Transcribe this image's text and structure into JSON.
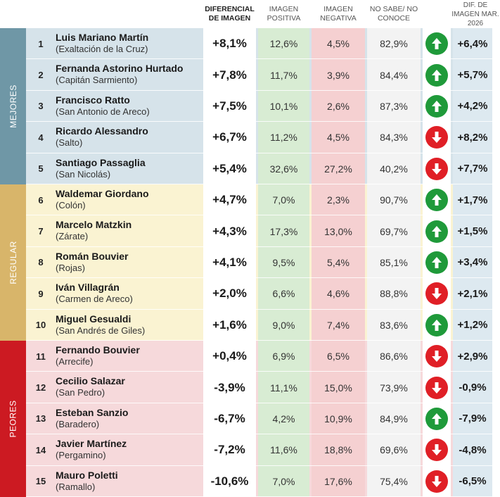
{
  "headers": {
    "diferencial": "DIFERENCIAL DE IMAGEN",
    "positiva": "IMAGEN POSITIVA",
    "negativa": "IMAGEN NEGATIVA",
    "nosabe": "NO SABE/ NO CONOCE",
    "dif": "DIF. DE IMAGEN MAR. 2026"
  },
  "groups": [
    {
      "label": "MEJORES",
      "color": "#6f97a6"
    },
    {
      "label": "REGULAR",
      "color": "#d8b56a"
    },
    {
      "label": "PEORES",
      "color": "#cc1a22"
    }
  ],
  "chart_data": {
    "type": "table",
    "columns": [
      "DIFERENCIAL DE IMAGEN",
      "IMAGEN POSITIVA",
      "IMAGEN NEGATIVA",
      "NO SABE/ NO CONOCE",
      "DIF. DE IMAGEN MAR. 2026"
    ],
    "rows": [
      {
        "rank": "1",
        "name": "Luis Mariano Martín",
        "location": "(Exaltación de la Cruz)",
        "diferencial": "+8,1%",
        "positiva": "12,6%",
        "negativa": "4,5%",
        "nosabe": "82,9%",
        "trend": "up",
        "dif": "+6,4%",
        "group": 0
      },
      {
        "rank": "2",
        "name": "Fernanda Astorino Hurtado",
        "location": "(Capitán Sarmiento)",
        "diferencial": "+7,8%",
        "positiva": "11,7%",
        "negativa": "3,9%",
        "nosabe": "84,4%",
        "trend": "up",
        "dif": "+5,7%",
        "group": 0
      },
      {
        "rank": "3",
        "name": "Francisco Ratto",
        "location": "(San Antonio de Areco)",
        "diferencial": "+7,5%",
        "positiva": "10,1%",
        "negativa": "2,6%",
        "nosabe": "87,3%",
        "trend": "up",
        "dif": "+4,2%",
        "group": 0
      },
      {
        "rank": "4",
        "name": "Ricardo Alessandro",
        "location": "(Salto)",
        "diferencial": "+6,7%",
        "positiva": "11,2%",
        "negativa": "4,5%",
        "nosabe": "84,3%",
        "trend": "down",
        "dif": "+8,2%",
        "group": 0
      },
      {
        "rank": "5",
        "name": "Santiago Passaglia",
        "location": "(San Nicolás)",
        "diferencial": "+5,4%",
        "positiva": "32,6%",
        "negativa": "27,2%",
        "nosabe": "40,2%",
        "trend": "down",
        "dif": "+7,7%",
        "group": 0
      },
      {
        "rank": "6",
        "name": "Waldemar Giordano",
        "location": "(Colón)",
        "diferencial": "+4,7%",
        "positiva": "7,0%",
        "negativa": "2,3%",
        "nosabe": "90,7%",
        "trend": "up",
        "dif": "+1,7%",
        "group": 1
      },
      {
        "rank": "7",
        "name": "Marcelo Matzkin",
        "location": "(Zárate)",
        "diferencial": "+4,3%",
        "positiva": "17,3%",
        "negativa": "13,0%",
        "nosabe": "69,7%",
        "trend": "up",
        "dif": "+1,5%",
        "group": 1
      },
      {
        "rank": "8",
        "name": "Román Bouvier",
        "location": "(Rojas)",
        "diferencial": "+4,1%",
        "positiva": "9,5%",
        "negativa": "5,4%",
        "nosabe": "85,1%",
        "trend": "up",
        "dif": "+3,4%",
        "group": 1
      },
      {
        "rank": "9",
        "name": "Iván Villagrán",
        "location": "(Carmen de Areco)",
        "diferencial": "+2,0%",
        "positiva": "6,6%",
        "negativa": "4,6%",
        "nosabe": "88,8%",
        "trend": "down",
        "dif": "+2,1%",
        "group": 1
      },
      {
        "rank": "10",
        "name": "Miguel Gesualdi",
        "location": "(San Andrés de Giles)",
        "diferencial": "+1,6%",
        "positiva": "9,0%",
        "negativa": "7,4%",
        "nosabe": "83,6%",
        "trend": "up",
        "dif": "+1,2%",
        "group": 1
      },
      {
        "rank": "11",
        "name": "Fernando Bouvier",
        "location": "(Arrecife)",
        "diferencial": "+0,4%",
        "positiva": "6,9%",
        "negativa": "6,5%",
        "nosabe": "86,6%",
        "trend": "down",
        "dif": "+2,9%",
        "group": 2
      },
      {
        "rank": "12",
        "name": "Cecilio Salazar",
        "location": "(San Pedro)",
        "diferencial": "-3,9%",
        "positiva": "11,1%",
        "negativa": "15,0%",
        "nosabe": "73,9%",
        "trend": "down",
        "dif": "-0,9%",
        "group": 2
      },
      {
        "rank": "13",
        "name": "Esteban Sanzio",
        "location": "(Baradero)",
        "diferencial": "-6,7%",
        "positiva": "4,2%",
        "negativa": "10,9%",
        "nosabe": "84,9%",
        "trend": "up",
        "dif": "-7,9%",
        "group": 2
      },
      {
        "rank": "14",
        "name": "Javier Martínez",
        "location": "(Pergamino)",
        "diferencial": "-7,2%",
        "positiva": "11,6%",
        "negativa": "18,8%",
        "nosabe": "69,6%",
        "trend": "down",
        "dif": "-4,8%",
        "group": 2
      },
      {
        "rank": "15",
        "name": "Mauro Poletti",
        "location": "(Ramallo)",
        "diferencial": "-10,6%",
        "positiva": "7,0%",
        "negativa": "17,6%",
        "nosabe": "75,4%",
        "trend": "down",
        "dif": "-6,5%",
        "group": 2
      }
    ]
  }
}
